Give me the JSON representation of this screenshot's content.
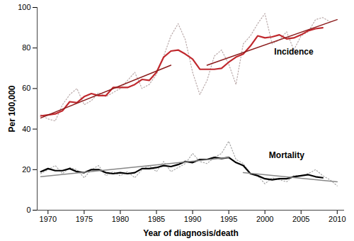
{
  "chart_data": {
    "type": "line",
    "x_label": "Year of diagnosis/death",
    "y_label": "Per 100,000",
    "xlim": [
      1968.5,
      2011
    ],
    "xticks": [
      1970,
      1975,
      1980,
      1985,
      1990,
      1995,
      2000,
      2005,
      2010
    ],
    "ylim": [
      0,
      100
    ],
    "yticks": [
      0,
      20,
      40,
      60,
      80,
      100
    ],
    "grid": false,
    "series": [
      {
        "color": "#b8a8a8",
        "line_style": "dotted",
        "x": [
          1969,
          1970,
          1971,
          1972,
          1973,
          1974,
          1975,
          1976,
          1977,
          1978,
          1979,
          1980,
          1981,
          1982,
          1983,
          1984,
          1985,
          1986,
          1987,
          1988,
          1989,
          1990,
          1991,
          1992,
          1993,
          1994,
          1995,
          1996,
          1997,
          1998,
          1999,
          2000,
          2001,
          2002,
          2003,
          2004,
          2005,
          2006,
          2007,
          2008,
          2009
        ],
        "values": [
          47,
          45,
          44,
          52,
          57,
          60,
          52,
          54,
          58,
          56,
          58,
          60,
          64,
          68,
          60,
          62,
          67,
          76,
          86,
          92,
          84,
          68,
          57,
          64,
          76,
          79,
          72,
          62,
          82,
          86,
          92,
          97,
          82,
          84,
          88,
          79,
          86,
          88,
          94,
          95,
          93
        ]
      },
      {
        "name": "Incidence",
        "color": "#c0282d",
        "line_style": "solid",
        "x": [
          1969,
          1970,
          1971,
          1972,
          1973,
          1974,
          1975,
          1976,
          1977,
          1978,
          1979,
          1980,
          1981,
          1982,
          1983,
          1984,
          1985,
          1986,
          1987,
          1988,
          1989,
          1990,
          1991,
          1992,
          1993,
          1994,
          1995,
          1996,
          1997,
          1998,
          1999,
          2000,
          2001,
          2002,
          2003,
          2004,
          2005,
          2006,
          2007,
          2008
        ],
        "values": [
          46.5,
          47,
          47.5,
          49,
          53.5,
          53,
          56,
          57.5,
          56.5,
          56.5,
          60.5,
          60.5,
          60.5,
          62,
          64.5,
          64,
          68,
          75.5,
          78.5,
          79,
          77,
          74.5,
          69.5,
          69.5,
          69.5,
          70,
          73,
          75.5,
          77,
          81,
          86,
          85,
          85.5,
          86.5,
          84.5,
          85,
          86.5,
          88.5,
          89.5,
          90
        ]
      },
      {
        "color": "#8b1a1a",
        "line_style": "solid",
        "x": [
          1969,
          1987
        ],
        "values": [
          45.5,
          71.5
        ]
      },
      {
        "color": "#8b1a1a",
        "line_style": "solid",
        "x": [
          1992,
          2010
        ],
        "values": [
          71.5,
          94
        ]
      },
      {
        "color": "#a8a8a8",
        "line_style": "dotted",
        "x": [
          1969,
          1970,
          1971,
          1972,
          1973,
          1974,
          1975,
          1976,
          1977,
          1978,
          1979,
          1980,
          1981,
          1982,
          1983,
          1984,
          1985,
          1986,
          1987,
          1988,
          1989,
          1990,
          1991,
          1992,
          1993,
          1994,
          1995,
          1996,
          1997,
          1998,
          1999,
          2000,
          2001,
          2002,
          2003,
          2004,
          2005,
          2006,
          2007,
          2008,
          2009,
          2010
        ],
        "values": [
          18,
          20,
          22,
          18,
          21,
          20,
          16,
          20,
          22,
          17,
          19,
          17,
          19,
          16,
          20,
          22,
          19,
          24,
          19,
          21,
          23,
          28,
          24,
          23,
          26,
          28,
          34,
          25,
          23,
          18,
          17,
          13,
          16,
          15,
          14,
          17,
          17,
          18,
          20,
          17,
          15,
          12
        ]
      },
      {
        "name": "Mortality",
        "color": "#000000",
        "line_style": "solid",
        "x": [
          1969,
          1970,
          1971,
          1972,
          1973,
          1974,
          1975,
          1976,
          1977,
          1978,
          1979,
          1980,
          1981,
          1982,
          1983,
          1984,
          1985,
          1986,
          1987,
          1988,
          1989,
          1990,
          1991,
          1992,
          1993,
          1994,
          1995,
          1996,
          1997,
          1998,
          1999,
          2000,
          2001,
          2002,
          2003,
          2004,
          2005,
          2006,
          2007,
          2008
        ],
        "values": [
          19,
          20.5,
          19.5,
          19.5,
          20.5,
          19,
          18.5,
          20,
          20,
          18.5,
          18,
          18.5,
          18,
          18.5,
          20.5,
          20.5,
          21,
          22,
          21.5,
          22.5,
          24,
          23.5,
          25,
          25,
          26,
          25.5,
          26,
          23.5,
          22,
          18,
          17,
          15.5,
          15,
          15.5,
          15.5,
          16.5,
          17,
          17.5,
          16.5,
          16
        ]
      },
      {
        "color": "#888888",
        "line_style": "solid",
        "x": [
          1969,
          1995
        ],
        "values": [
          16.5,
          26
        ]
      },
      {
        "color": "#888888",
        "line_style": "solid",
        "x": [
          1997,
          2010
        ],
        "values": [
          18.5,
          14
        ]
      }
    ],
    "annotations": [
      {
        "text": "Incidence",
        "x": 2004,
        "y": 78
      },
      {
        "text": "Mortality",
        "x": 2003,
        "y": 27
      }
    ]
  }
}
